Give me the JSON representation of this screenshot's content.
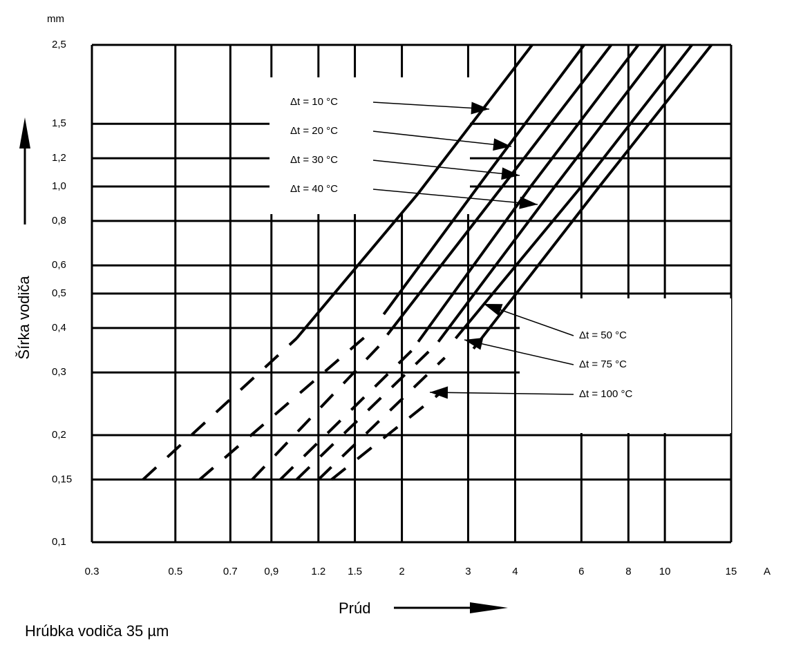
{
  "chart_data": {
    "type": "line",
    "y_unit": "mm",
    "x_unit": "A",
    "ylabel": "Šírka vodiča",
    "xlabel": "Prúd",
    "footnote": "Hrúbka vodiča 35 µm",
    "xlog": true,
    "ylog": true,
    "grid": true,
    "xlim": [
      0.3,
      15
    ],
    "ylim": [
      0.1,
      2.5
    ],
    "xticks": [
      0.3,
      0.5,
      0.7,
      {
        "value": 0.9,
        "label": "0,9"
      },
      1.2,
      1.5,
      2,
      3,
      4,
      6,
      8,
      10,
      15
    ],
    "yticks": [
      {
        "value": 0.1,
        "label": "0,1"
      },
      {
        "value": 0.15,
        "label": "0,15"
      },
      {
        "value": 0.2,
        "label": "0,2"
      },
      {
        "value": 0.3,
        "label": "0,3"
      },
      {
        "value": 0.4,
        "label": "0,4"
      },
      {
        "value": 0.5,
        "label": "0,5"
      },
      {
        "value": 0.6,
        "label": "0,6"
      },
      {
        "value": 0.8,
        "label": "0,8"
      },
      {
        "value": 1.0,
        "label": "1,0"
      },
      {
        "value": 1.2,
        "label": "1,2"
      },
      {
        "value": 1.5,
        "label": "1,5"
      },
      {
        "value": 2.5,
        "label": "2,5"
      }
    ],
    "series": [
      {
        "name": "Δt = 10 °C",
        "color": "#000000",
        "x": [
          1.05,
          2.2,
          4.44
        ],
        "values": [
          0.374,
          0.95,
          2.5
        ],
        "dashed": {
          "x": [
            0.41,
            1.05
          ],
          "values": [
            0.15,
            0.374
          ]
        }
      },
      {
        "name": "Δt = 20 °C",
        "color": "#000000",
        "x": [
          1.79,
          3.3,
          6.1
        ],
        "values": [
          0.437,
          1.05,
          2.5
        ],
        "dashed": {
          "x": [
            0.58,
            1.7
          ],
          "values": [
            0.15,
            0.4
          ]
        }
      },
      {
        "name": "Δt = 30 °C",
        "color": "#000000",
        "x": [
          1.83,
          3.7,
          7.2
        ],
        "values": [
          0.383,
          1.0,
          2.5
        ],
        "dashed": {
          "x": [
            0.8,
            1.8
          ],
          "values": [
            0.15,
            0.37
          ]
        }
      },
      {
        "name": "Δt = 40 °C",
        "color": "#000000",
        "x": [
          2.21,
          4.4,
          8.5
        ],
        "values": [
          0.366,
          1.0,
          2.5
        ],
        "dashed": {
          "x": [
            0.95,
            2.15
          ],
          "values": [
            0.15,
            0.35
          ]
        }
      },
      {
        "name": "Δt = 50 °C",
        "color": "#000000",
        "x": [
          2.5,
          5.1,
          9.9
        ],
        "values": [
          0.366,
          1.0,
          2.5
        ],
        "dashed": {
          "x": [
            1.05,
            2.4
          ],
          "values": [
            0.15,
            0.35
          ]
        }
      },
      {
        "name": "Δt = 75 °C",
        "color": "#000000",
        "x": [
          2.78,
          6.0,
          11.8
        ],
        "values": [
          0.374,
          1.0,
          2.5
        ],
        "dashed": {
          "x": [
            1.2,
            2.6
          ],
          "values": [
            0.15,
            0.33
          ]
        }
      },
      {
        "name": "Δt = 100 °C",
        "color": "#000000",
        "x": [
          3.1,
          6.7,
          13.3
        ],
        "values": [
          0.35,
          1.0,
          2.5
        ],
        "dashed": {
          "x": [
            1.3,
            2.5
          ],
          "values": [
            0.15,
            0.26
          ]
        }
      }
    ]
  }
}
